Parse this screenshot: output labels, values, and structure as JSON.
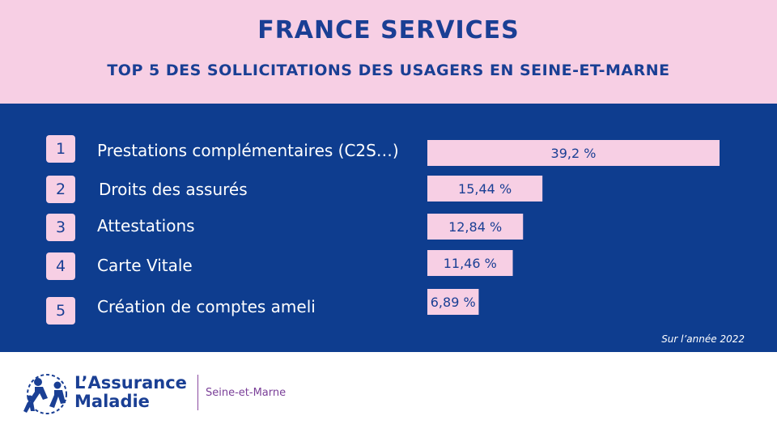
{
  "header": {
    "title": "FRANCE SERVICES",
    "subtitle": "TOP 5 DES SOLLICITATIONS DES USAGERS EN SEINE-ET-MARNE"
  },
  "chart_data": {
    "type": "bar",
    "orientation": "horizontal",
    "title": "FRANCE SERVICES",
    "subtitle": "TOP 5 DES SOLLICITATIONS DES USAGERS EN SEINE-ET-MARNE",
    "ranks": [
      "1",
      "2",
      "3",
      "4",
      "5"
    ],
    "categories": [
      "Prestations complémentaires (C2S…)",
      "Droits des assurés",
      "Attestations",
      "Carte Vitale",
      "Création de comptes ameli"
    ],
    "values": [
      39.2,
      15.44,
      12.84,
      11.46,
      6.89
    ],
    "value_labels": [
      "39,2 %",
      "15,44 %",
      "12,84 %",
      "11,46 %",
      "6,89 %"
    ],
    "unit": "%",
    "grid": false,
    "legend": "none"
  },
  "footnote": "Sur l’année 2022",
  "footer": {
    "brand_line1": "L’Assurance",
    "brand_line2": "Maladie",
    "department": "Seine-et-Marne"
  },
  "colors": {
    "background_main": "#0e3d8f",
    "header_pink": "#f7cfe4",
    "bar_fill": "#f7cfe4",
    "text_blue": "#1a3f94",
    "accent_purple": "#7a3f98"
  }
}
